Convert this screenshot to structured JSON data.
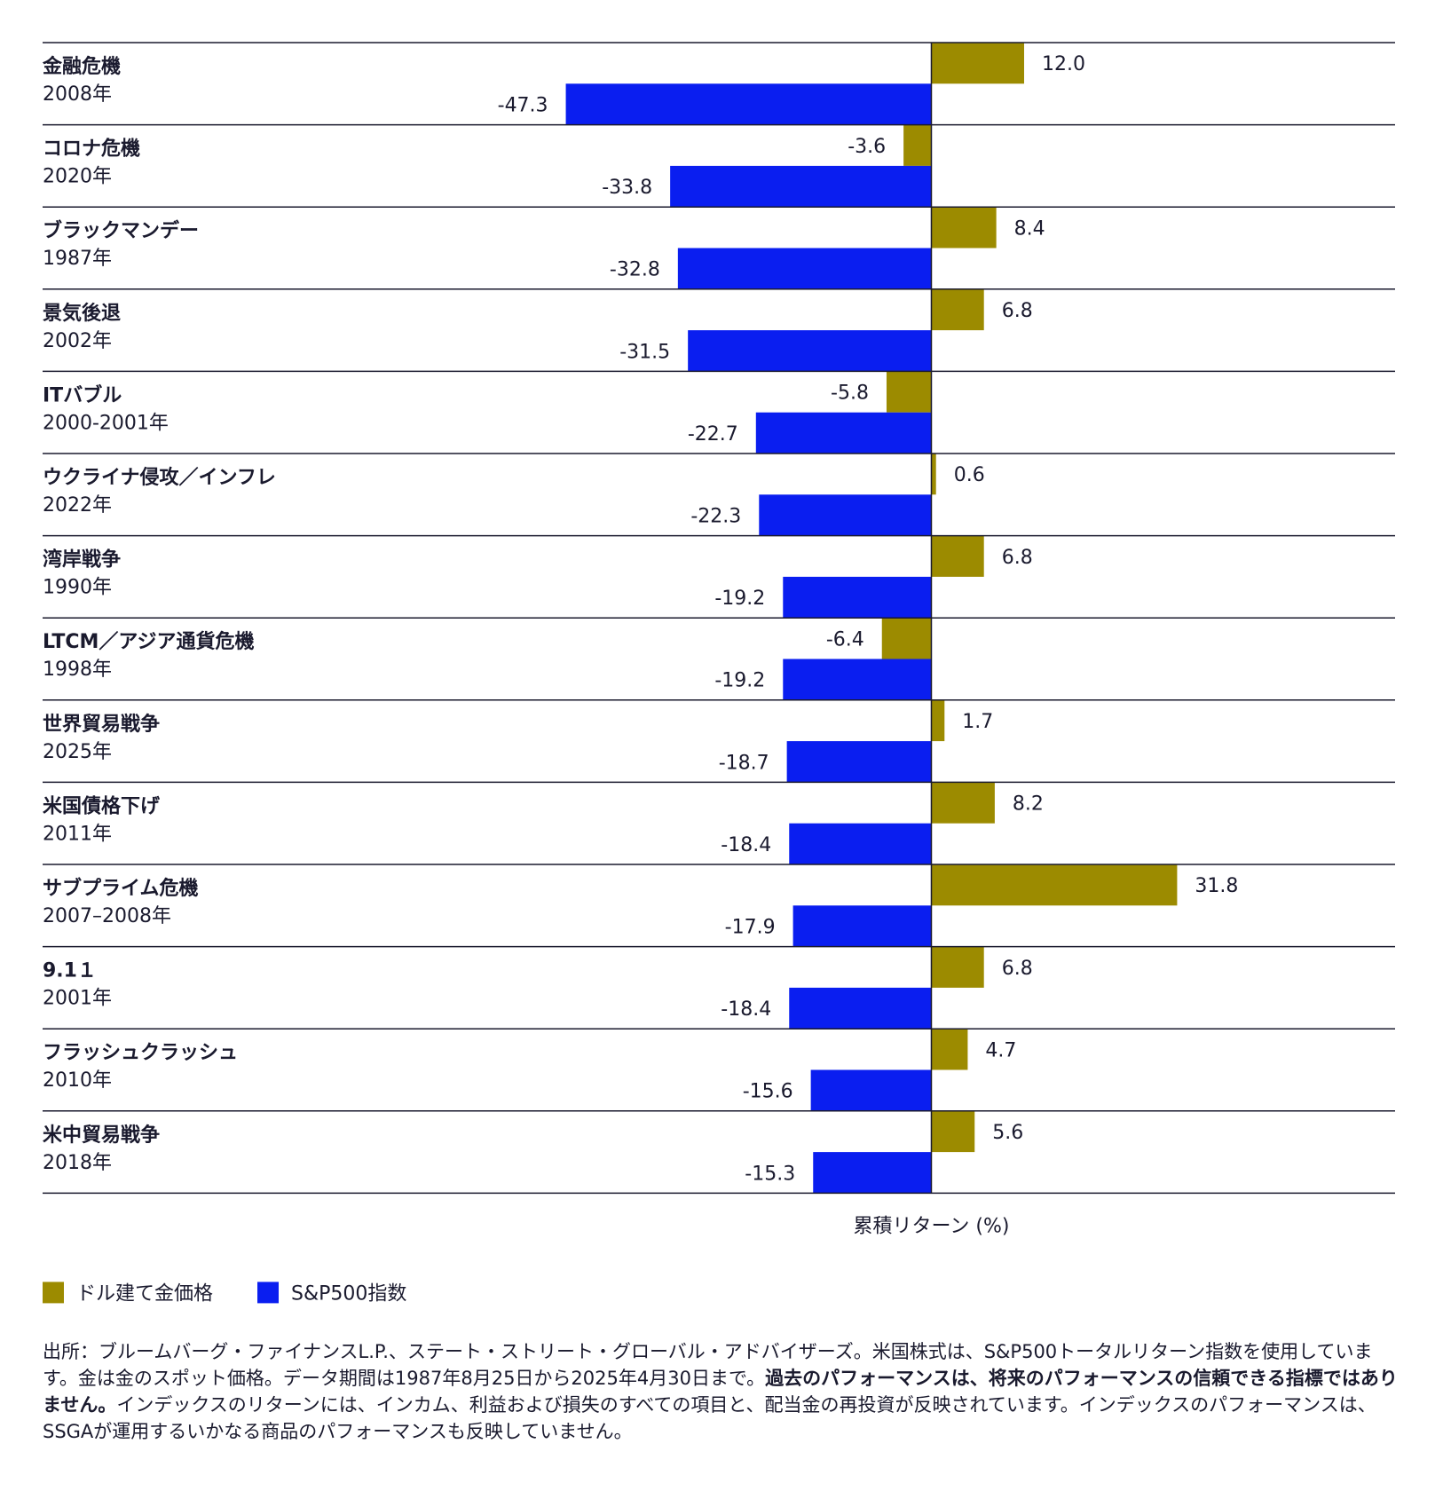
{
  "chart_data": {
    "type": "hbar",
    "categories": [
      "金融危機",
      "コロナ危機",
      "ブラックマンデー",
      "景気後退",
      "ITバブル",
      "ウクライナ侵攻／インフレ",
      "湾岸戦争",
      "LTCM／アジア通貨危機",
      "世界貿易戦争",
      "米国債格下げ",
      "サブプライム危機",
      "9.1１",
      "フラッシュクラッシュ",
      "米中貿易戦争"
    ],
    "category_years": [
      "2008年",
      "2020年",
      "1987年",
      "2002年",
      "2000-2001年",
      "2022年",
      "1990年",
      "1998年",
      "2025年",
      "2011年",
      "2007–2008年",
      "2001年",
      "2010年",
      "2018年"
    ],
    "series": [
      {
        "name": "ドル建て金価格",
        "color": "#9c8b00",
        "values": [
          12.0,
          -3.6,
          8.4,
          6.8,
          -5.8,
          0.6,
          6.8,
          -6.4,
          1.7,
          8.2,
          31.8,
          6.8,
          4.7,
          5.6
        ],
        "value_labels": [
          "12.0",
          "-3.6",
          "8.4",
          "6.8",
          "-5.8",
          "0.6",
          "6.8",
          "-6.4",
          "1.7",
          "8.2",
          "31.8",
          "6.8",
          "4.7",
          "5.6"
        ]
      },
      {
        "name": "S&P500指数",
        "color": "#0a1ef0",
        "values": [
          -47.3,
          -33.8,
          -32.8,
          -31.5,
          -22.7,
          -22.3,
          -19.2,
          -19.2,
          -18.7,
          -18.4,
          -17.9,
          -18.4,
          -15.6,
          -15.3
        ]
      }
    ],
    "xlabel": "累積リターン (%)",
    "xlim": [
      -115,
      60
    ],
    "footnote": [
      "出所：ブルームバーグ・ファイナンスL.P.、ステート・ストリート・グローバル・アドバイザーズ。米国株式は、S&P500トータルリターン指数を使用しています。金は金のスポット価格。データ期間は1987年8月25日から2025年4月30日まで。",
      "過去のパフォーマンスは、将来のパフォーマンスの信頼できる指標ではありません。",
      "インデックスのリターンには、インカム、利益および損失のすべての項目と、配当金の再投資が反映されています。インデックスのパフォーマンスは、SSGAが運用するいかなる商品のパフォーマンスも反映していません。"
    ]
  }
}
